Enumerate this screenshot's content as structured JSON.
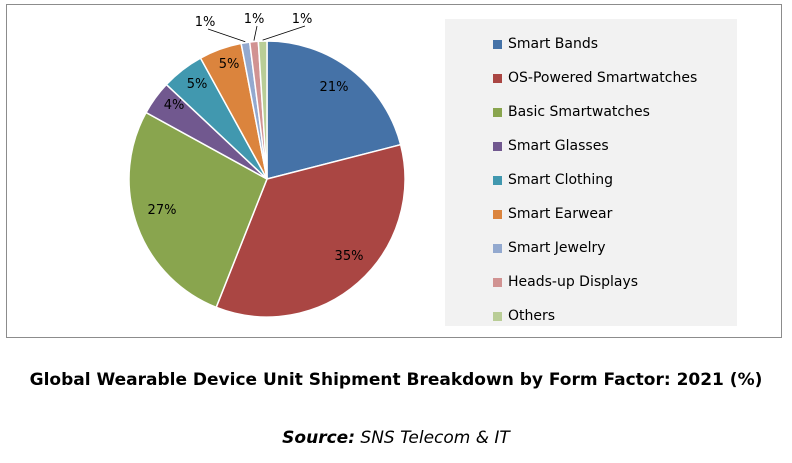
{
  "chart_data": {
    "type": "pie",
    "title": "Global Wearable Device Unit Shipment Breakdown by Form Factor: 2021 (%)",
    "unit": "%",
    "legend_position": "right",
    "slices": [
      {
        "label": "Smart Bands",
        "value": 21,
        "display": "21%",
        "color": "#4572a7"
      },
      {
        "label": "OS-Powered Smartwatches",
        "value": 35,
        "display": "35%",
        "color": "#aa4643"
      },
      {
        "label": "Basic Smartwatches",
        "value": 27,
        "display": "27%",
        "color": "#89a54e"
      },
      {
        "label": "Smart Glasses",
        "value": 4,
        "display": "4%",
        "color": "#71588f"
      },
      {
        "label": "Smart Clothing",
        "value": 5,
        "display": "5%",
        "color": "#4198af"
      },
      {
        "label": "Smart Earwear",
        "value": 5,
        "display": "5%",
        "color": "#db843d"
      },
      {
        "label": "Smart Jewelry",
        "value": 1,
        "display": "1%",
        "color": "#93a9cf"
      },
      {
        "label": "Heads-up Displays",
        "value": 1,
        "display": "1%",
        "color": "#d19392"
      },
      {
        "label": "Others",
        "value": 1,
        "display": "1%",
        "color": "#b9cd96"
      }
    ]
  },
  "caption": "Global Wearable Device Unit Shipment Breakdown by Form Factor: 2021 (%)",
  "source": {
    "key": "Source:",
    "text": " SNS Telecom & IT"
  }
}
